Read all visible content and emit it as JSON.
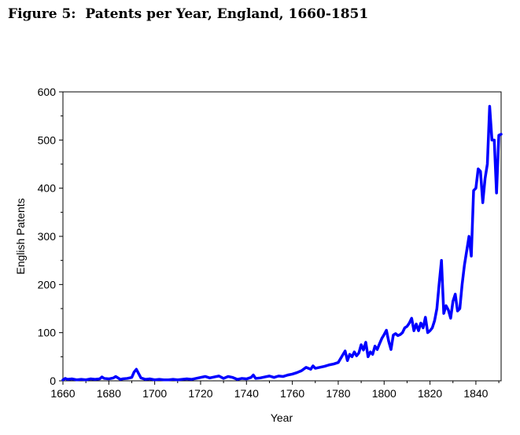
{
  "figure_title": "Figure 5:  Patents per Year, England, 1660-1851",
  "chart_data": {
    "type": "line",
    "xlabel": "Year",
    "ylabel": "English Patents",
    "xlim": [
      1660,
      1851
    ],
    "ylim": [
      0,
      600
    ],
    "x_ticks": [
      1660,
      1680,
      1700,
      1720,
      1740,
      1760,
      1780,
      1800,
      1820,
      1840
    ],
    "y_ticks": [
      0,
      100,
      200,
      300,
      400,
      500,
      600
    ],
    "grid": false,
    "line_color": "#0000ff",
    "series": [
      {
        "x": [
          1660,
          1661,
          1662,
          1664,
          1666,
          1668,
          1670,
          1672,
          1674,
          1676,
          1677,
          1678,
          1680,
          1682,
          1683,
          1685,
          1686,
          1688,
          1690,
          1691,
          1692,
          1693,
          1694,
          1696,
          1698,
          1700,
          1702,
          1704,
          1706,
          1708,
          1710,
          1712,
          1714,
          1716,
          1718,
          1720,
          1722,
          1724,
          1726,
          1728,
          1730,
          1732,
          1734,
          1736,
          1738,
          1740,
          1742,
          1743,
          1744,
          1746,
          1748,
          1750,
          1752,
          1754,
          1756,
          1758,
          1760,
          1762,
          1764,
          1766,
          1768,
          1769,
          1770,
          1772,
          1774,
          1776,
          1778,
          1780,
          1782,
          1783,
          1784,
          1785,
          1786,
          1787,
          1788,
          1789,
          1790,
          1791,
          1792,
          1793,
          1794,
          1795,
          1796,
          1797,
          1798,
          1799,
          1800,
          1801,
          1802,
          1803,
          1804,
          1805,
          1806,
          1807,
          1808,
          1809,
          1810,
          1811,
          1812,
          1813,
          1814,
          1815,
          1816,
          1817,
          1818,
          1819,
          1820,
          1821,
          1822,
          1823,
          1824,
          1825,
          1826,
          1827,
          1828,
          1829,
          1830,
          1831,
          1832,
          1833,
          1834,
          1835,
          1836,
          1837,
          1838,
          1839,
          1840,
          1841,
          1842,
          1843,
          1844,
          1845,
          1846,
          1847,
          1848,
          1849,
          1850,
          1851
        ],
        "y": [
          2,
          5,
          3,
          4,
          2,
          3,
          2,
          4,
          3,
          4,
          8,
          5,
          4,
          6,
          9,
          3,
          4,
          5,
          7,
          18,
          24,
          15,
          6,
          3,
          4,
          2,
          3,
          2,
          2,
          3,
          2,
          3,
          4,
          3,
          5,
          7,
          9,
          6,
          8,
          10,
          5,
          9,
          7,
          3,
          5,
          4,
          7,
          12,
          5,
          6,
          8,
          10,
          7,
          10,
          9,
          12,
          14,
          17,
          21,
          28,
          24,
          31,
          26,
          28,
          30,
          33,
          35,
          38,
          54,
          62,
          42,
          55,
          50,
          60,
          52,
          58,
          75,
          64,
          80,
          50,
          60,
          55,
          72,
          65,
          77,
          88,
          96,
          105,
          82,
          65,
          95,
          98,
          94,
          96,
          100,
          110,
          113,
          120,
          130,
          104,
          118,
          104,
          120,
          110,
          132,
          100,
          104,
          110,
          125,
          150,
          202,
          250,
          140,
          156,
          147,
          130,
          165,
          180,
          145,
          150,
          200,
          240,
          270,
          300,
          259,
          395,
          400,
          440,
          435,
          370,
          420,
          450,
          570,
          500,
          500,
          390,
          510,
          512
        ]
      }
    ]
  }
}
